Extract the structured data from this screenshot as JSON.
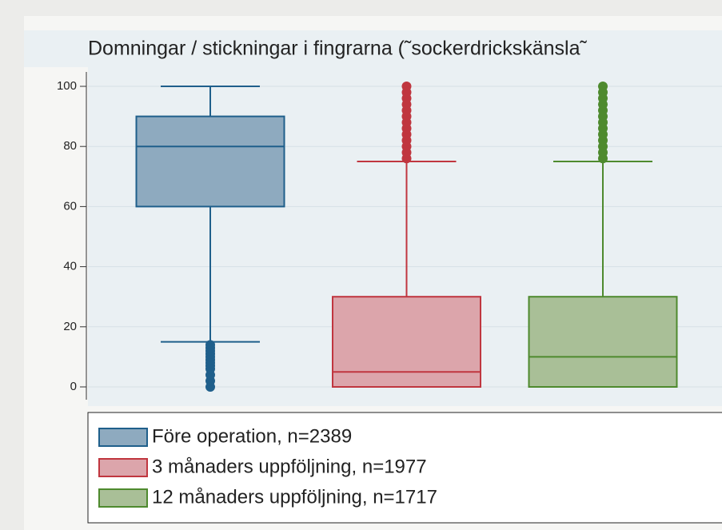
{
  "chart_data": {
    "type": "box",
    "title": "Domningar / stickningar i fingrarna (˜sockerdrickskänsla˜",
    "ylim": [
      0,
      100
    ],
    "yticks": [
      0,
      20,
      40,
      60,
      80,
      100
    ],
    "grid": true,
    "series": [
      {
        "name": "Före operation, n=2389",
        "color": "#1f5f8b",
        "fill": "#8eaabf",
        "whisker_low": 15,
        "q1": 60,
        "median": 80,
        "q3": 90,
        "whisker_high": 100,
        "outliers": [
          0,
          2,
          4,
          6,
          7,
          8,
          9,
          10,
          11,
          12,
          13,
          14
        ]
      },
      {
        "name": "3 månaders uppföljning, n=1977",
        "color": "#c0363f",
        "fill": "#dca5ab",
        "whisker_low": 0,
        "q1": 0,
        "median": 5,
        "q3": 30,
        "whisker_high": 75,
        "outliers": [
          76,
          78,
          80,
          82,
          84,
          86,
          88,
          90,
          92,
          94,
          96,
          98,
          100
        ]
      },
      {
        "name": "12 månaders uppföljning, n=1717",
        "color": "#4e8a2e",
        "fill": "#a9bf97",
        "whisker_low": 0,
        "q1": 0,
        "median": 10,
        "q3": 30,
        "whisker_high": 75,
        "outliers": [
          76,
          78,
          80,
          82,
          84,
          86,
          88,
          90,
          92,
          94,
          96,
          98,
          100
        ]
      }
    ]
  }
}
